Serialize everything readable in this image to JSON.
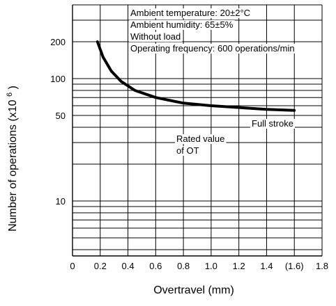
{
  "chart_data": {
    "type": "line",
    "xlabel": "Overtravel (mm)",
    "ylabel_main": "Number of operations",
    "ylabel_unit_prefix": "(x10",
    "ylabel_unit_exp": "6",
    "ylabel_unit_suffix": ")",
    "x_scale": "linear",
    "y_scale": "log",
    "xlim": [
      0,
      1.8
    ],
    "ylim": [
      1,
      300
    ],
    "grid": true,
    "x_ticks": [
      {
        "value": 0,
        "label": "0"
      },
      {
        "value": 0.2,
        "label": "0.2"
      },
      {
        "value": 0.4,
        "label": "0.4"
      },
      {
        "value": 0.6,
        "label": "0.6"
      },
      {
        "value": 0.8,
        "label": "0.8"
      },
      {
        "value": 1.0,
        "label": "1.0"
      },
      {
        "value": 1.2,
        "label": "1.2"
      },
      {
        "value": 1.4,
        "label": "1.4"
      },
      {
        "value": 1.6,
        "label": "(1.6)"
      },
      {
        "value": 1.8,
        "label": "1.8"
      }
    ],
    "y_ticks": [
      {
        "value": 200,
        "label": "200"
      },
      {
        "value": 100,
        "label": "100"
      },
      {
        "value": 50,
        "label": "50"
      },
      {
        "value": 10,
        "label": "10"
      }
    ],
    "y_grid": [
      1,
      2,
      3,
      4,
      5,
      6,
      7,
      8,
      9,
      10,
      20,
      30,
      40,
      50,
      60,
      70,
      80,
      90,
      100,
      200,
      300
    ],
    "series": [
      {
        "x": [
          0.18,
          0.22,
          0.28,
          0.35,
          0.45,
          0.6,
          0.8,
          1.0,
          1.2,
          1.4,
          1.6
        ],
        "y": [
          200,
          150,
          115,
          95,
          80,
          70,
          63,
          60,
          58,
          56,
          55
        ]
      }
    ],
    "conditions": [
      "Ambient temperature: 20±2°C",
      "Ambient humidity: 65±5%",
      "Without load",
      "Operating frequency: 600 operations/min"
    ],
    "annotations": {
      "full_stroke": "Full stroke",
      "rated_line1": "Rated value",
      "rated_line2": "of OT"
    },
    "colors": {
      "curve": "#000000",
      "grid": "#000000",
      "background": "#ffffff"
    }
  }
}
